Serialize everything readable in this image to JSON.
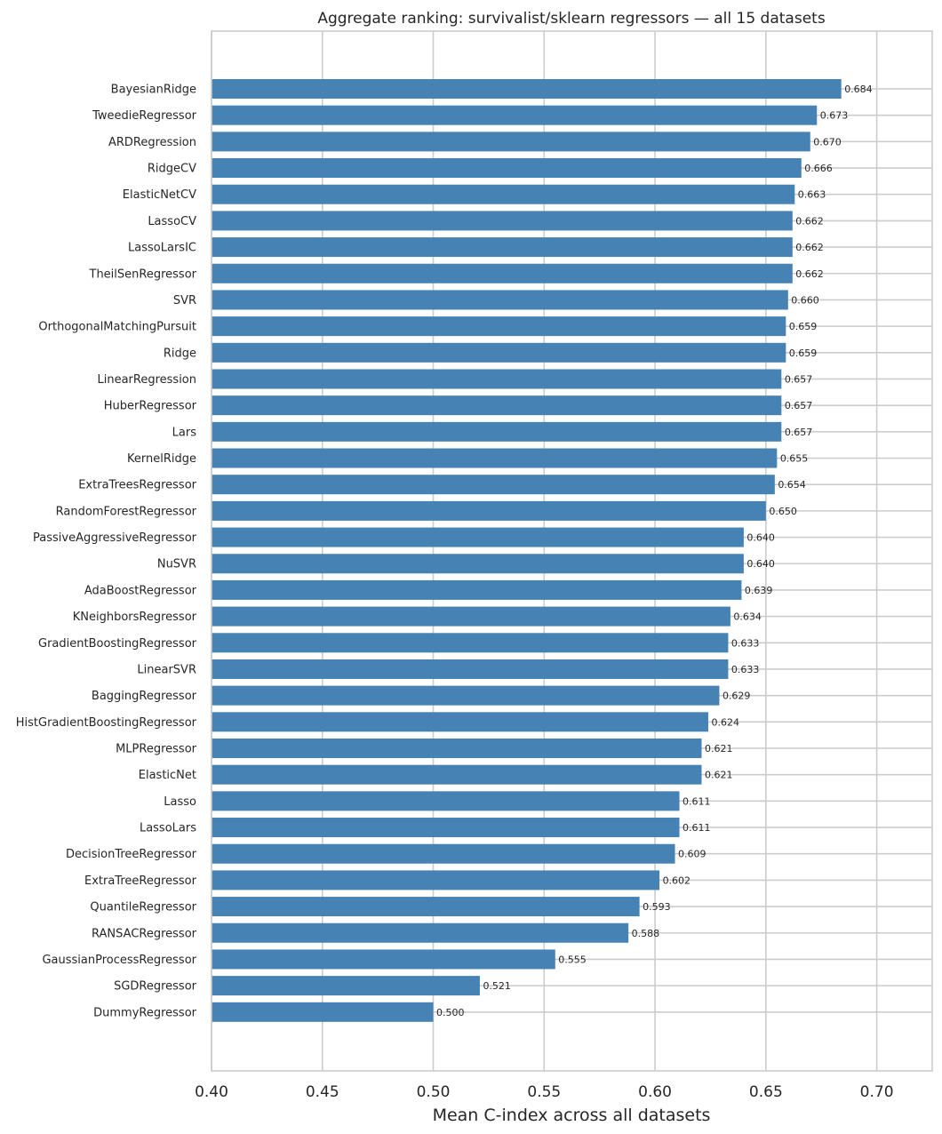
{
  "chart_data": {
    "type": "bar",
    "orientation": "horizontal",
    "title": "Aggregate ranking: survivalist/sklearn regressors — all 15 datasets",
    "xlabel": "Mean C-index across all datasets",
    "ylabel": "",
    "xlim": [
      0.4,
      0.725
    ],
    "xticks": [
      "0.40",
      "0.45",
      "0.50",
      "0.55",
      "0.60",
      "0.65",
      "0.70"
    ],
    "grid": true,
    "color": "#4682b4",
    "categories": [
      "BayesianRidge",
      "TweedieRegressor",
      "ARDRegression",
      "RidgeCV",
      "ElasticNetCV",
      "LassoCV",
      "LassoLarsIC",
      "TheilSenRegressor",
      "SVR",
      "OrthogonalMatchingPursuit",
      "Ridge",
      "LinearRegression",
      "HuberRegressor",
      "Lars",
      "KernelRidge",
      "ExtraTreesRegressor",
      "RandomForestRegressor",
      "PassiveAggressiveRegressor",
      "NuSVR",
      "AdaBoostRegressor",
      "KNeighborsRegressor",
      "GradientBoostingRegressor",
      "LinearSVR",
      "BaggingRegressor",
      "HistGradientBoostingRegressor",
      "MLPRegressor",
      "ElasticNet",
      "Lasso",
      "LassoLars",
      "DecisionTreeRegressor",
      "ExtraTreeRegressor",
      "QuantileRegressor",
      "RANSACRegressor",
      "GaussianProcessRegressor",
      "SGDRegressor",
      "DummyRegressor"
    ],
    "values": [
      0.684,
      0.673,
      0.67,
      0.666,
      0.663,
      0.662,
      0.662,
      0.662,
      0.66,
      0.659,
      0.659,
      0.657,
      0.657,
      0.657,
      0.655,
      0.654,
      0.65,
      0.64,
      0.64,
      0.639,
      0.634,
      0.633,
      0.633,
      0.629,
      0.624,
      0.621,
      0.621,
      0.611,
      0.611,
      0.609,
      0.602,
      0.593,
      0.588,
      0.555,
      0.521,
      0.5
    ],
    "value_labels": [
      "0.684",
      "0.673",
      "0.670",
      "0.666",
      "0.663",
      "0.662",
      "0.662",
      "0.662",
      "0.660",
      "0.659",
      "0.659",
      "0.657",
      "0.657",
      "0.657",
      "0.655",
      "0.654",
      "0.650",
      "0.640",
      "0.640",
      "0.639",
      "0.634",
      "0.633",
      "0.633",
      "0.629",
      "0.624",
      "0.621",
      "0.621",
      "0.611",
      "0.611",
      "0.609",
      "0.602",
      "0.593",
      "0.588",
      "0.555",
      "0.521",
      "0.500"
    ]
  }
}
